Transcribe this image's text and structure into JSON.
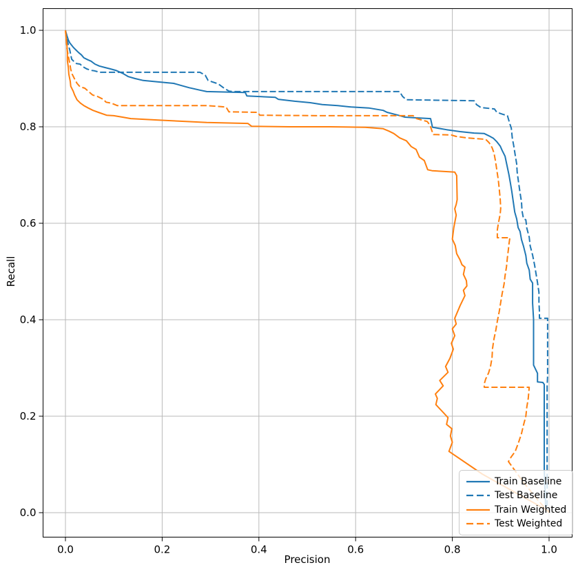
{
  "figure": {
    "background": "#ffffff"
  },
  "chart_data": {
    "type": "line",
    "title": "",
    "xlabel": "Precision",
    "ylabel": "Recall",
    "xlim": [
      -0.05,
      1.05
    ],
    "ylim": [
      -0.05,
      1.05
    ],
    "x_ticks": [
      0.0,
      0.2,
      0.4,
      0.6,
      0.8,
      1.0
    ],
    "y_ticks": [
      0.0,
      0.2,
      0.4,
      0.6,
      0.8,
      1.0
    ],
    "grid": true,
    "grid_color": "#b9b9b9",
    "spine_color": "#000000",
    "legend": {
      "position": "lower right"
    },
    "series": [
      {
        "name": "Train Baseline",
        "color": "#1f77b4",
        "dash": "solid",
        "points": [
          [
            0.0,
            1.0
          ],
          [
            0.003,
            0.989
          ],
          [
            0.006,
            0.98
          ],
          [
            0.009,
            0.974
          ],
          [
            0.013,
            0.969
          ],
          [
            0.017,
            0.964
          ],
          [
            0.021,
            0.96
          ],
          [
            0.027,
            0.954
          ],
          [
            0.033,
            0.949
          ],
          [
            0.038,
            0.943
          ],
          [
            0.046,
            0.939
          ],
          [
            0.053,
            0.936
          ],
          [
            0.061,
            0.93
          ],
          [
            0.07,
            0.926
          ],
          [
            0.081,
            0.923
          ],
          [
            0.093,
            0.92
          ],
          [
            0.104,
            0.917
          ],
          [
            0.118,
            0.911
          ],
          [
            0.13,
            0.904
          ],
          [
            0.144,
            0.9
          ],
          [
            0.161,
            0.896
          ],
          [
            0.192,
            0.893
          ],
          [
            0.224,
            0.89
          ],
          [
            0.238,
            0.886
          ],
          [
            0.256,
            0.881
          ],
          [
            0.278,
            0.876
          ],
          [
            0.292,
            0.873
          ],
          [
            0.372,
            0.871
          ],
          [
            0.375,
            0.864
          ],
          [
            0.434,
            0.861
          ],
          [
            0.44,
            0.857
          ],
          [
            0.474,
            0.853
          ],
          [
            0.506,
            0.85
          ],
          [
            0.531,
            0.846
          ],
          [
            0.563,
            0.844
          ],
          [
            0.591,
            0.841
          ],
          [
            0.627,
            0.839
          ],
          [
            0.657,
            0.834
          ],
          [
            0.665,
            0.83
          ],
          [
            0.688,
            0.824
          ],
          [
            0.702,
            0.82
          ],
          [
            0.719,
            0.819
          ],
          [
            0.755,
            0.817
          ],
          [
            0.759,
            0.799
          ],
          [
            0.788,
            0.794
          ],
          [
            0.816,
            0.79
          ],
          [
            0.845,
            0.787
          ],
          [
            0.866,
            0.786
          ],
          [
            0.876,
            0.781
          ],
          [
            0.885,
            0.776
          ],
          [
            0.892,
            0.769
          ],
          [
            0.899,
            0.76
          ],
          [
            0.903,
            0.751
          ],
          [
            0.909,
            0.739
          ],
          [
            0.913,
            0.72
          ],
          [
            0.917,
            0.701
          ],
          [
            0.92,
            0.684
          ],
          [
            0.923,
            0.666
          ],
          [
            0.926,
            0.644
          ],
          [
            0.929,
            0.623
          ],
          [
            0.933,
            0.609
          ],
          [
            0.936,
            0.591
          ],
          [
            0.94,
            0.583
          ],
          [
            0.943,
            0.566
          ],
          [
            0.947,
            0.553
          ],
          [
            0.952,
            0.533
          ],
          [
            0.954,
            0.517
          ],
          [
            0.959,
            0.503
          ],
          [
            0.961,
            0.484
          ],
          [
            0.966,
            0.476
          ],
          [
            0.966,
            0.434
          ],
          [
            0.968,
            0.401
          ],
          [
            0.968,
            0.306
          ],
          [
            0.976,
            0.289
          ],
          [
            0.976,
            0.271
          ],
          [
            0.987,
            0.27
          ],
          [
            0.99,
            0.266
          ],
          [
            0.99,
            0.091
          ],
          [
            0.991,
            0.063
          ],
          [
            0.993,
            0.01
          ],
          [
            1.0,
            0.0
          ]
        ]
      },
      {
        "name": "Test Baseline",
        "color": "#1f77b4",
        "dash": "dashed",
        "points": [
          [
            0.0,
            1.0
          ],
          [
            0.003,
            0.983
          ],
          [
            0.006,
            0.97
          ],
          [
            0.009,
            0.959
          ],
          [
            0.011,
            0.949
          ],
          [
            0.013,
            0.94
          ],
          [
            0.017,
            0.936
          ],
          [
            0.023,
            0.931
          ],
          [
            0.03,
            0.93
          ],
          [
            0.037,
            0.924
          ],
          [
            0.044,
            0.92
          ],
          [
            0.053,
            0.917
          ],
          [
            0.06,
            0.916
          ],
          [
            0.071,
            0.913
          ],
          [
            0.278,
            0.913
          ],
          [
            0.289,
            0.907
          ],
          [
            0.295,
            0.896
          ],
          [
            0.316,
            0.889
          ],
          [
            0.328,
            0.88
          ],
          [
            0.338,
            0.874
          ],
          [
            0.346,
            0.873
          ],
          [
            0.691,
            0.873
          ],
          [
            0.697,
            0.863
          ],
          [
            0.705,
            0.856
          ],
          [
            0.845,
            0.854
          ],
          [
            0.85,
            0.846
          ],
          [
            0.859,
            0.84
          ],
          [
            0.887,
            0.837
          ],
          [
            0.892,
            0.83
          ],
          [
            0.904,
            0.826
          ],
          [
            0.914,
            0.823
          ],
          [
            0.919,
            0.806
          ],
          [
            0.922,
            0.797
          ],
          [
            0.924,
            0.777
          ],
          [
            0.927,
            0.76
          ],
          [
            0.93,
            0.741
          ],
          [
            0.933,
            0.723
          ],
          [
            0.934,
            0.706
          ],
          [
            0.937,
            0.684
          ],
          [
            0.94,
            0.663
          ],
          [
            0.943,
            0.644
          ],
          [
            0.944,
            0.626
          ],
          [
            0.947,
            0.61
          ],
          [
            0.952,
            0.607
          ],
          [
            0.954,
            0.59
          ],
          [
            0.959,
            0.571
          ],
          [
            0.961,
            0.553
          ],
          [
            0.966,
            0.534
          ],
          [
            0.97,
            0.514
          ],
          [
            0.973,
            0.496
          ],
          [
            0.976,
            0.477
          ],
          [
            0.979,
            0.457
          ],
          [
            0.979,
            0.437
          ],
          [
            0.98,
            0.417
          ],
          [
            0.98,
            0.403
          ],
          [
            0.997,
            0.403
          ],
          [
            0.997,
            0.284
          ],
          [
            0.996,
            0.263
          ],
          [
            0.996,
            0.01
          ],
          [
            1.0,
            0.0
          ]
        ]
      },
      {
        "name": "Train Weighted",
        "color": "#ff7f0e",
        "dash": "solid",
        "points": [
          [
            0.0,
            1.0
          ],
          [
            0.001,
            0.989
          ],
          [
            0.003,
            0.971
          ],
          [
            0.004,
            0.953
          ],
          [
            0.004,
            0.937
          ],
          [
            0.006,
            0.923
          ],
          [
            0.007,
            0.909
          ],
          [
            0.01,
            0.894
          ],
          [
            0.011,
            0.884
          ],
          [
            0.016,
            0.874
          ],
          [
            0.019,
            0.866
          ],
          [
            0.024,
            0.856
          ],
          [
            0.031,
            0.849
          ],
          [
            0.038,
            0.844
          ],
          [
            0.047,
            0.839
          ],
          [
            0.057,
            0.834
          ],
          [
            0.068,
            0.83
          ],
          [
            0.085,
            0.824
          ],
          [
            0.1,
            0.823
          ],
          [
            0.118,
            0.82
          ],
          [
            0.135,
            0.817
          ],
          [
            0.192,
            0.814
          ],
          [
            0.249,
            0.811
          ],
          [
            0.292,
            0.809
          ],
          [
            0.377,
            0.807
          ],
          [
            0.385,
            0.801
          ],
          [
            0.463,
            0.8
          ],
          [
            0.548,
            0.8
          ],
          [
            0.62,
            0.799
          ],
          [
            0.657,
            0.796
          ],
          [
            0.669,
            0.791
          ],
          [
            0.679,
            0.786
          ],
          [
            0.691,
            0.777
          ],
          [
            0.705,
            0.771
          ],
          [
            0.715,
            0.759
          ],
          [
            0.725,
            0.753
          ],
          [
            0.732,
            0.737
          ],
          [
            0.742,
            0.73
          ],
          [
            0.749,
            0.711
          ],
          [
            0.758,
            0.709
          ],
          [
            0.805,
            0.706
          ],
          [
            0.809,
            0.699
          ],
          [
            0.81,
            0.649
          ],
          [
            0.808,
            0.639
          ],
          [
            0.805,
            0.63
          ],
          [
            0.808,
            0.617
          ],
          [
            0.803,
            0.591
          ],
          [
            0.8,
            0.567
          ],
          [
            0.806,
            0.554
          ],
          [
            0.809,
            0.537
          ],
          [
            0.816,
            0.524
          ],
          [
            0.82,
            0.514
          ],
          [
            0.826,
            0.509
          ],
          [
            0.823,
            0.494
          ],
          [
            0.829,
            0.481
          ],
          [
            0.83,
            0.47
          ],
          [
            0.823,
            0.461
          ],
          [
            0.826,
            0.45
          ],
          [
            0.816,
            0.429
          ],
          [
            0.805,
            0.403
          ],
          [
            0.808,
            0.391
          ],
          [
            0.8,
            0.381
          ],
          [
            0.805,
            0.367
          ],
          [
            0.798,
            0.351
          ],
          [
            0.802,
            0.339
          ],
          [
            0.795,
            0.32
          ],
          [
            0.786,
            0.303
          ],
          [
            0.791,
            0.291
          ],
          [
            0.774,
            0.274
          ],
          [
            0.781,
            0.263
          ],
          [
            0.765,
            0.246
          ],
          [
            0.769,
            0.237
          ],
          [
            0.766,
            0.224
          ],
          [
            0.779,
            0.21
          ],
          [
            0.791,
            0.197
          ],
          [
            0.788,
            0.183
          ],
          [
            0.799,
            0.174
          ],
          [
            0.796,
            0.159
          ],
          [
            0.8,
            0.146
          ],
          [
            0.793,
            0.127
          ],
          [
            0.862,
            0.08
          ],
          [
            0.933,
            0.04
          ],
          [
            1.0,
            0.003
          ]
        ]
      },
      {
        "name": "Test Weighted",
        "color": "#ff7f0e",
        "dash": "dashed",
        "points": [
          [
            0.0,
            1.0
          ],
          [
            0.003,
            0.963
          ],
          [
            0.006,
            0.946
          ],
          [
            0.009,
            0.931
          ],
          [
            0.011,
            0.919
          ],
          [
            0.014,
            0.909
          ],
          [
            0.019,
            0.899
          ],
          [
            0.024,
            0.89
          ],
          [
            0.03,
            0.883
          ],
          [
            0.04,
            0.88
          ],
          [
            0.048,
            0.873
          ],
          [
            0.056,
            0.866
          ],
          [
            0.066,
            0.863
          ],
          [
            0.078,
            0.857
          ],
          [
            0.084,
            0.851
          ],
          [
            0.095,
            0.849
          ],
          [
            0.107,
            0.844
          ],
          [
            0.292,
            0.844
          ],
          [
            0.332,
            0.841
          ],
          [
            0.338,
            0.831
          ],
          [
            0.397,
            0.83
          ],
          [
            0.402,
            0.824
          ],
          [
            0.534,
            0.823
          ],
          [
            0.719,
            0.823
          ],
          [
            0.726,
            0.817
          ],
          [
            0.748,
            0.811
          ],
          [
            0.754,
            0.803
          ],
          [
            0.758,
            0.791
          ],
          [
            0.761,
            0.784
          ],
          [
            0.798,
            0.783
          ],
          [
            0.808,
            0.78
          ],
          [
            0.83,
            0.777
          ],
          [
            0.869,
            0.774
          ],
          [
            0.876,
            0.767
          ],
          [
            0.882,
            0.757
          ],
          [
            0.886,
            0.746
          ],
          [
            0.889,
            0.73
          ],
          [
            0.892,
            0.71
          ],
          [
            0.895,
            0.69
          ],
          [
            0.897,
            0.671
          ],
          [
            0.899,
            0.65
          ],
          [
            0.9,
            0.631
          ],
          [
            0.899,
            0.62
          ],
          [
            0.897,
            0.609
          ],
          [
            0.895,
            0.599
          ],
          [
            0.893,
            0.586
          ],
          [
            0.893,
            0.57
          ],
          [
            0.919,
            0.57
          ],
          [
            0.917,
            0.556
          ],
          [
            0.916,
            0.546
          ],
          [
            0.914,
            0.53
          ],
          [
            0.912,
            0.51
          ],
          [
            0.909,
            0.491
          ],
          [
            0.907,
            0.474
          ],
          [
            0.903,
            0.454
          ],
          [
            0.9,
            0.436
          ],
          [
            0.897,
            0.417
          ],
          [
            0.893,
            0.397
          ],
          [
            0.89,
            0.379
          ],
          [
            0.886,
            0.36
          ],
          [
            0.883,
            0.34
          ],
          [
            0.882,
            0.321
          ],
          [
            0.879,
            0.304
          ],
          [
            0.875,
            0.29
          ],
          [
            0.869,
            0.277
          ],
          [
            0.866,
            0.267
          ],
          [
            0.866,
            0.26
          ],
          [
            0.959,
            0.26
          ],
          [
            0.957,
            0.237
          ],
          [
            0.954,
            0.219
          ],
          [
            0.952,
            0.2
          ],
          [
            0.947,
            0.181
          ],
          [
            0.943,
            0.164
          ],
          [
            0.937,
            0.146
          ],
          [
            0.93,
            0.127
          ],
          [
            0.922,
            0.116
          ],
          [
            0.916,
            0.106
          ],
          [
            0.947,
            0.063
          ],
          [
            0.976,
            0.027
          ],
          [
            1.0,
            0.0
          ]
        ]
      }
    ]
  }
}
